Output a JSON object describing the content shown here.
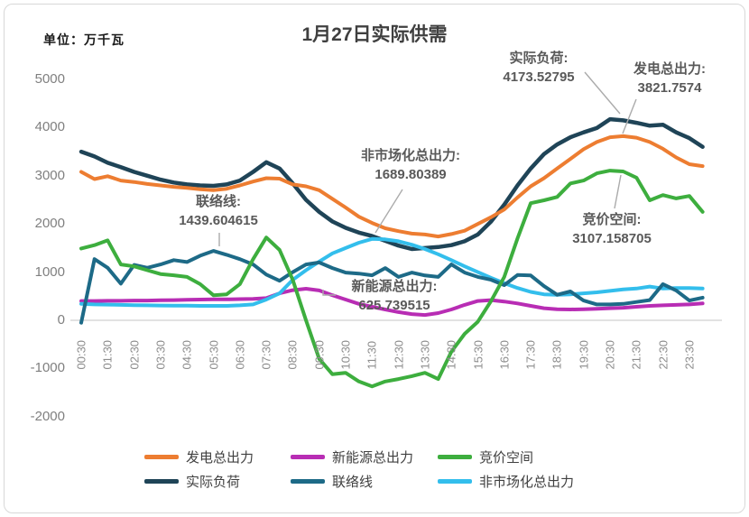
{
  "chart": {
    "title": "1月27日实际供需",
    "unit_label": "单位：万千瓦"
  },
  "chart_data": {
    "type": "line",
    "title": "1月27日实际供需",
    "unit_label": "单位：万千瓦",
    "x_start": "00:30",
    "x_interval_minutes": 30,
    "x_tick_labels": [
      "00:30",
      "01:30",
      "02:30",
      "03:30",
      "04:30",
      "05:30",
      "06:30",
      "07:30",
      "08:30",
      "09:30",
      "10:30",
      "11:30",
      "12:30",
      "13:30",
      "14:30",
      "15:30",
      "16:30",
      "17:30",
      "18:30",
      "19:30",
      "20:30",
      "21:30",
      "22:30",
      "23:30"
    ],
    "ylim": [
      -2000,
      5000
    ],
    "y_ticks": [
      5000,
      4000,
      3000,
      2000,
      1000,
      0,
      -1000,
      -2000
    ],
    "grid": "zero-line-only",
    "legend_position": "bottom",
    "series": [
      {
        "key": "generation",
        "name": "发电总出力",
        "color": "#ED7D31",
        "values": [
          3080,
          2930,
          2990,
          2900,
          2870,
          2830,
          2800,
          2770,
          2750,
          2720,
          2700,
          2730,
          2800,
          2880,
          2950,
          2940,
          2820,
          2780,
          2700,
          2520,
          2340,
          2150,
          2020,
          1910,
          1850,
          1800,
          1780,
          1740,
          1790,
          1860,
          2000,
          2140,
          2300,
          2550,
          2780,
          2950,
          3150,
          3350,
          3550,
          3700,
          3800,
          3821.7574,
          3790,
          3700,
          3560,
          3380,
          3240,
          3200
        ]
      },
      {
        "key": "load",
        "name": "实际负荷",
        "color": "#1F4457",
        "values": [
          3500,
          3400,
          3270,
          3180,
          3080,
          3000,
          2920,
          2860,
          2820,
          2800,
          2790,
          2820,
          2900,
          3080,
          3280,
          3150,
          2840,
          2500,
          2250,
          2050,
          1920,
          1820,
          1750,
          1650,
          1550,
          1480,
          1500,
          1520,
          1560,
          1640,
          1780,
          2050,
          2400,
          2800,
          3150,
          3450,
          3650,
          3800,
          3900,
          3990,
          4173.52795,
          4150,
          4100,
          4040,
          4060,
          3900,
          3780,
          3600
        ]
      },
      {
        "key": "new_energy",
        "name": "新能源总出力",
        "color": "#B82DB4",
        "values": [
          400,
          400,
          405,
          405,
          410,
          410,
          415,
          420,
          425,
          430,
          435,
          435,
          440,
          445,
          460,
          560,
          625.739515,
          655,
          620,
          520,
          430,
          340,
          280,
          225,
          170,
          130,
          110,
          150,
          225,
          320,
          400,
          420,
          390,
          350,
          300,
          250,
          230,
          225,
          230,
          240,
          250,
          260,
          280,
          300,
          310,
          320,
          330,
          350
        ]
      },
      {
        "key": "tie_line",
        "name": "联络线",
        "color": "#1D6A87",
        "values": [
          -50,
          1270,
          1090,
          760,
          1150,
          1090,
          1160,
          1250,
          1210,
          1340,
          1439.604615,
          1360,
          1270,
          1160,
          950,
          820,
          1000,
          1160,
          1200,
          1085,
          990,
          970,
          935,
          1085,
          900,
          990,
          930,
          900,
          1160,
          990,
          900,
          840,
          730,
          940,
          930,
          710,
          530,
          600,
          410,
          330,
          330,
          340,
          380,
          420,
          750,
          620,
          410,
          470
        ]
      },
      {
        "key": "bidding_space",
        "name": "竞价空间",
        "color": "#3DAE3E",
        "values": [
          1490,
          1560,
          1660,
          1160,
          1120,
          1040,
          960,
          935,
          900,
          750,
          520,
          540,
          750,
          1270,
          1720,
          1460,
          840,
          0,
          -800,
          -1120,
          -1090,
          -1270,
          -1370,
          -1270,
          -1220,
          -1160,
          -1090,
          -1220,
          -650,
          -280,
          -30,
          400,
          900,
          1700,
          2430,
          2490,
          2560,
          2840,
          2900,
          3050,
          3107.158705,
          3090,
          2960,
          2490,
          2600,
          2530,
          2580,
          2250
        ]
      },
      {
        "key": "non_market",
        "name": "非市场化总出力",
        "color": "#33BEEC",
        "values": [
          340,
          330,
          325,
          320,
          315,
          310,
          308,
          305,
          303,
          300,
          300,
          300,
          310,
          330,
          430,
          560,
          840,
          1040,
          1220,
          1390,
          1500,
          1610,
          1689.80389,
          1680,
          1640,
          1570,
          1480,
          1370,
          1250,
          1120,
          1000,
          880,
          770,
          670,
          590,
          540,
          530,
          540,
          560,
          580,
          610,
          640,
          660,
          700,
          660,
          670,
          670,
          660
        ]
      }
    ],
    "annotations": [
      {
        "series": "load",
        "label": "实际负荷:",
        "value": "4173.52795"
      },
      {
        "series": "generation",
        "label": "发电总出力:",
        "value": "3821.7574"
      },
      {
        "series": "non_market",
        "label": "非市场化总出力:",
        "value": "1689.80389"
      },
      {
        "series": "tie_line",
        "label": "联络线:",
        "value": "1439.604615"
      },
      {
        "series": "new_energy",
        "label": "新能源总出力:",
        "value": "625.739515"
      },
      {
        "series": "bidding_space",
        "label": "竞价空间:",
        "value": "3107.158705"
      }
    ],
    "legend": [
      {
        "series": "generation",
        "label": "发电总出力"
      },
      {
        "series": "new_energy",
        "label": "新能源总出力"
      },
      {
        "series": "bidding_space",
        "label": "竞价空间"
      },
      {
        "series": "load",
        "label": "实际负荷"
      },
      {
        "series": "tie_line",
        "label": "联络线"
      },
      {
        "series": "non_market",
        "label": "非市场化总出力"
      }
    ]
  }
}
